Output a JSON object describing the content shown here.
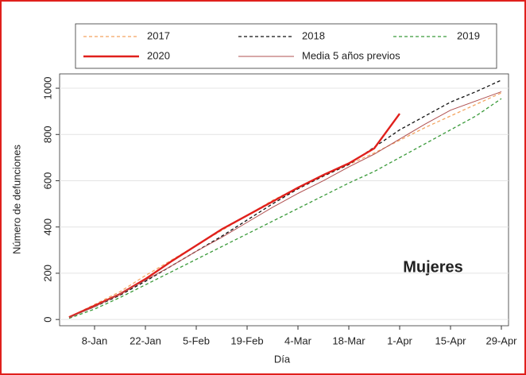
{
  "chart_data": {
    "type": "line",
    "xlabel": "Día",
    "ylabel": "Número de defunciones",
    "annotation": "Mujeres",
    "categories": [
      null,
      "8-Jan",
      null,
      "22-Jan",
      null,
      "5-Feb",
      null,
      "19-Feb",
      null,
      "4-Mar",
      null,
      "18-Mar",
      null,
      "1-Apr",
      null,
      "15-Apr",
      null,
      "29-Apr"
    ],
    "series": [
      {
        "name": "2017",
        "color": "#f4a460",
        "style": "dashed",
        "values": [
          10,
          65,
          120,
          190,
          255,
          320,
          385,
          450,
          515,
          570,
          620,
          670,
          720,
          775,
          830,
          880,
          930,
          980
        ]
      },
      {
        "name": "2018",
        "color": "#111111",
        "style": "dashed",
        "values": [
          10,
          55,
          105,
          165,
          230,
          295,
          360,
          430,
          500,
          565,
          620,
          670,
          745,
          820,
          880,
          940,
          985,
          1035
        ]
      },
      {
        "name": "2019",
        "color": "#3a9a3a",
        "style": "dashed",
        "values": [
          5,
          45,
          95,
          150,
          205,
          260,
          315,
          370,
          425,
          480,
          535,
          590,
          640,
          700,
          760,
          820,
          880,
          955
        ]
      },
      {
        "name": "2020",
        "color": "#e0201c",
        "style": "solid",
        "values": [
          10,
          60,
          110,
          175,
          250,
          320,
          390,
          450,
          510,
          570,
          625,
          675,
          740,
          890,
          null,
          null,
          null,
          null
        ]
      },
      {
        "name": "Media 5 años previos",
        "color": "#b05050",
        "style": "thin",
        "values": [
          8,
          55,
          110,
          170,
          230,
          295,
          355,
          420,
          485,
          545,
          600,
          660,
          715,
          780,
          845,
          905,
          945,
          985
        ]
      }
    ],
    "ylim": [
      -27,
      1062
    ],
    "yticks": [
      0,
      200,
      400,
      600,
      800,
      1000
    ],
    "grid": true
  }
}
